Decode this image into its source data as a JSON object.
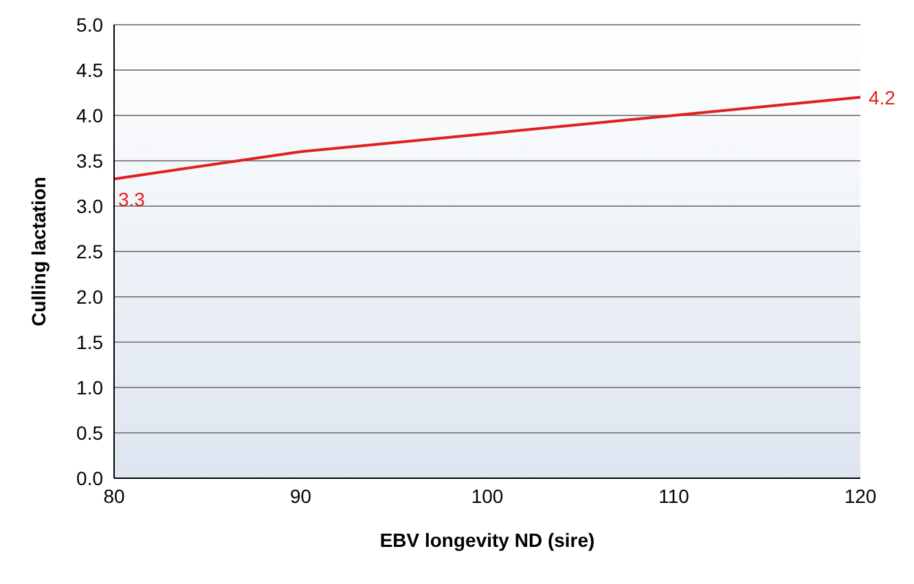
{
  "chart_data": {
    "type": "line",
    "xlabel": "EBV longevity ND (sire)",
    "ylabel": "Culling lactation",
    "x": [
      80,
      90,
      100,
      110,
      120
    ],
    "series": [
      {
        "color": "#e02020",
        "values": [
          3.3,
          3.6,
          3.8,
          4.0,
          4.2
        ],
        "value_labels": [
          "3.3",
          null,
          null,
          null,
          "4.2"
        ]
      }
    ],
    "xlim": [
      80,
      120
    ],
    "xticks": [
      80,
      90,
      100,
      110,
      120
    ],
    "ylim": [
      0,
      5
    ],
    "yticks": [
      {
        "value": 0,
        "label": "0.0"
      },
      0.5,
      {
        "value": 1,
        "label": "1.0"
      },
      1.5,
      {
        "value": 2,
        "label": "2.0"
      },
      2.5,
      {
        "value": 3,
        "label": "3.0"
      },
      3.5,
      {
        "value": 4,
        "label": "4.0"
      },
      4.5,
      {
        "value": 5,
        "label": "5.0"
      }
    ],
    "grid": "y",
    "legend": false,
    "marker": "none",
    "line_style": "solid"
  }
}
